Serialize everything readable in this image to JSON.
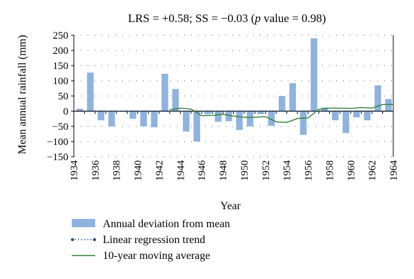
{
  "chart_data": {
    "type": "bar",
    "title_parts": {
      "pre": "LRS = +0.58; SS = −0.03 (",
      "p": "p",
      "post": " value = 0.98)"
    },
    "xlabel": "Year",
    "ylabel": "Mean annual rainfall (mm)",
    "xlim": [
      1934,
      1964
    ],
    "ylim": [
      -150,
      250
    ],
    "yticks": [
      250,
      200,
      150,
      100,
      50,
      0,
      -50,
      -100,
      -150
    ],
    "xticks": [
      1934,
      1936,
      1938,
      1940,
      1942,
      1944,
      1946,
      1948,
      1950,
      1952,
      1954,
      1956,
      1958,
      1960,
      1962,
      1964
    ],
    "grid": true,
    "legend_position": "bottom",
    "series": [
      {
        "name": "Annual deviation from mean",
        "type": "bar",
        "color": "#8fb3de",
        "x": [
          1935,
          1936,
          1937,
          1938,
          1939,
          1940,
          1941,
          1942,
          1943,
          1944,
          1945,
          1946,
          1947,
          1948,
          1949,
          1950,
          1951,
          1952,
          1953,
          1954,
          1955,
          1956,
          1957,
          1958,
          1959,
          1960,
          1961,
          1962,
          1963,
          1964
        ],
        "values": [
          8,
          127,
          -30,
          -50,
          -2,
          -25,
          -50,
          -53,
          123,
          73,
          -67,
          -100,
          -10,
          -35,
          -33,
          -62,
          -50,
          -10,
          -48,
          50,
          92,
          -78,
          240,
          12,
          -30,
          -72,
          -20,
          -30,
          85,
          40
        ]
      },
      {
        "name": "Linear regression trend",
        "type": "line",
        "color": "#1f4e8c",
        "style": "dotted",
        "x": [
          1935,
          1964
        ],
        "values": [
          0,
          0
        ]
      },
      {
        "name": "10-year moving average",
        "type": "line",
        "color": "#2e7d32",
        "x": [
          1943,
          1944,
          1945,
          1946,
          1947,
          1948,
          1949,
          1950,
          1951,
          1952,
          1953,
          1954,
          1955,
          1956,
          1957,
          1958,
          1959,
          1960,
          1961,
          1962,
          1963,
          1964
        ],
        "values": [
          5,
          10,
          7,
          -15,
          -14,
          -10,
          -16,
          -20,
          -20,
          -18,
          -35,
          -37,
          -24,
          -22,
          6,
          10,
          10,
          9,
          12,
          10,
          22,
          22
        ]
      }
    ]
  }
}
